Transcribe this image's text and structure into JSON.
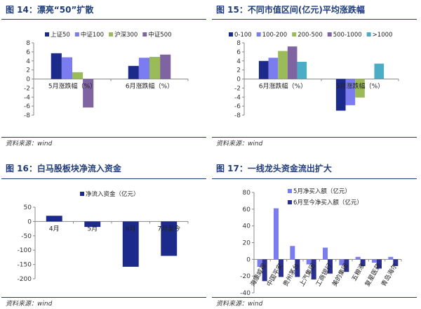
{
  "source_label": "资料来源：wind",
  "chart_data": [
    {
      "type": "bar",
      "title": "图 14：漂亮“50”扩散",
      "categories": [
        "5月涨跌幅（%）",
        "6月涨跌幅（%）"
      ],
      "series": [
        {
          "name": "上证50",
          "values": [
            5.7,
            2.9
          ]
        },
        {
          "name": "中证100",
          "values": [
            4.8,
            4.7
          ]
        },
        {
          "name": "沪深300",
          "values": [
            1.5,
            4.9
          ]
        },
        {
          "name": "中证500",
          "values": [
            -6.3,
            5.4
          ]
        }
      ],
      "colors": [
        "#1c2a8c",
        "#7b7cf0",
        "#9bbb59",
        "#8064a2"
      ],
      "ylim": [
        -8,
        8
      ],
      "yticks": [
        8,
        6,
        4,
        2,
        0,
        -2,
        -4,
        -6,
        -8
      ],
      "legend": "top"
    },
    {
      "type": "bar",
      "title": "图 15：不同市值区间(亿元)平均涨跌幅",
      "categories": [
        "6月涨跌幅（%）",
        "5月涨跌幅（%）"
      ],
      "series": [
        {
          "name": "0-100",
          "values": [
            4.0,
            -7.0
          ]
        },
        {
          "name": "100-200",
          "values": [
            4.7,
            -5.8
          ]
        },
        {
          "name": "200-500",
          "values": [
            6.2,
            -4.1
          ]
        },
        {
          "name": "500-1000",
          "values": [
            7.2,
            0
          ]
        },
        {
          "name": ">1000",
          "values": [
            3.8,
            3.4
          ]
        }
      ],
      "colors": [
        "#1c2a8c",
        "#7b7cf0",
        "#9bbb59",
        "#8064a2",
        "#4bacc6"
      ],
      "ylim": [
        -8,
        8
      ],
      "yticks": [
        8,
        6,
        4,
        2,
        0,
        -2,
        -4,
        -6,
        -8
      ],
      "legend": "top"
    },
    {
      "type": "bar",
      "title": "图 16：白马股板块净流入资金",
      "categories": [
        "4月",
        "5月",
        "6月",
        "7月至今"
      ],
      "series": [
        {
          "name": "净流入资金（亿元）",
          "values": [
            20,
            -19,
            -158,
            -120
          ]
        }
      ],
      "colors": [
        "#1c2a8c"
      ],
      "ylim": [
        -200,
        50
      ],
      "yticks": [
        50,
        0,
        -50,
        -100,
        -150,
        -200
      ],
      "legend": "top"
    },
    {
      "type": "bar",
      "title": "图 17：一线龙头资金流出扩大",
      "categories": [
        "海康威视",
        "中国平安",
        "贵州茅台",
        "上汽集团",
        "工商银行",
        "美的集团",
        "五粮液",
        "复星医药",
        "青岛海尔"
      ],
      "series": [
        {
          "name": "5月净买入额（亿元）",
          "values": [
            -9,
            61,
            16,
            -6,
            14,
            -7,
            3,
            -4,
            3
          ]
        },
        {
          "name": "6月至今净买入额（亿元）",
          "values": [
            -26,
            -21,
            -21,
            -24,
            -17,
            -15,
            -8,
            -11,
            -8
          ]
        }
      ],
      "colors": [
        "#7b7cf0",
        "#2b2f8f"
      ],
      "ylim": [
        -40,
        80
      ],
      "yticks": [
        80,
        60,
        40,
        20,
        0,
        -20,
        -40
      ],
      "legend": "top-left"
    }
  ]
}
